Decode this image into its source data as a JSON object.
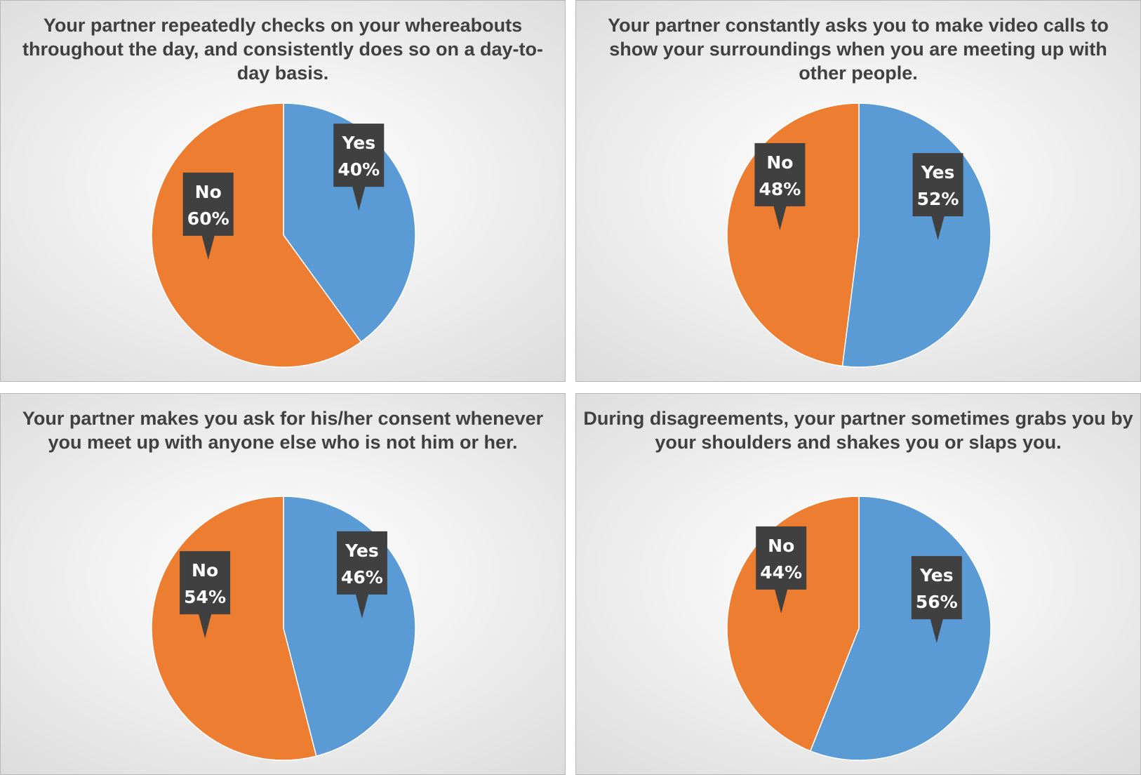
{
  "chart_data": [
    {
      "type": "pie",
      "title": "Your partner repeatedly checks on your whereabouts throughout the day, and consistently does so on a day-to-day basis.",
      "categories": [
        "Yes",
        "No"
      ],
      "values": [
        40,
        60
      ],
      "labels": [
        "40%",
        "60%"
      ],
      "colors": [
        "#5b9bd5",
        "#ed7d31"
      ],
      "legend": "none",
      "data_labels": "callouts"
    },
    {
      "type": "pie",
      "title": "Your partner constantly asks you to make video calls to show your surroundings when you are meeting up with other people.",
      "categories": [
        "Yes",
        "No"
      ],
      "values": [
        52,
        48
      ],
      "labels": [
        "52%",
        "48%"
      ],
      "colors": [
        "#5b9bd5",
        "#ed7d31"
      ],
      "legend": "none",
      "data_labels": "callouts"
    },
    {
      "type": "pie",
      "title": "Your partner makes you ask for his/her consent whenever you meet up with anyone else who is not him or her.",
      "categories": [
        "Yes",
        "No"
      ],
      "values": [
        46,
        54
      ],
      "labels": [
        "46%",
        "54%"
      ],
      "colors": [
        "#5b9bd5",
        "#ed7d31"
      ],
      "legend": "none",
      "data_labels": "callouts"
    },
    {
      "type": "pie",
      "title": "During disagreements, your partner sometimes grabs you by your shoulders and shakes you or slaps you.",
      "categories": [
        "Yes",
        "No"
      ],
      "values": [
        56,
        44
      ],
      "labels": [
        "56%",
        "44%"
      ],
      "colors": [
        "#5b9bd5",
        "#ed7d31"
      ],
      "legend": "none",
      "data_labels": "callouts"
    }
  ]
}
